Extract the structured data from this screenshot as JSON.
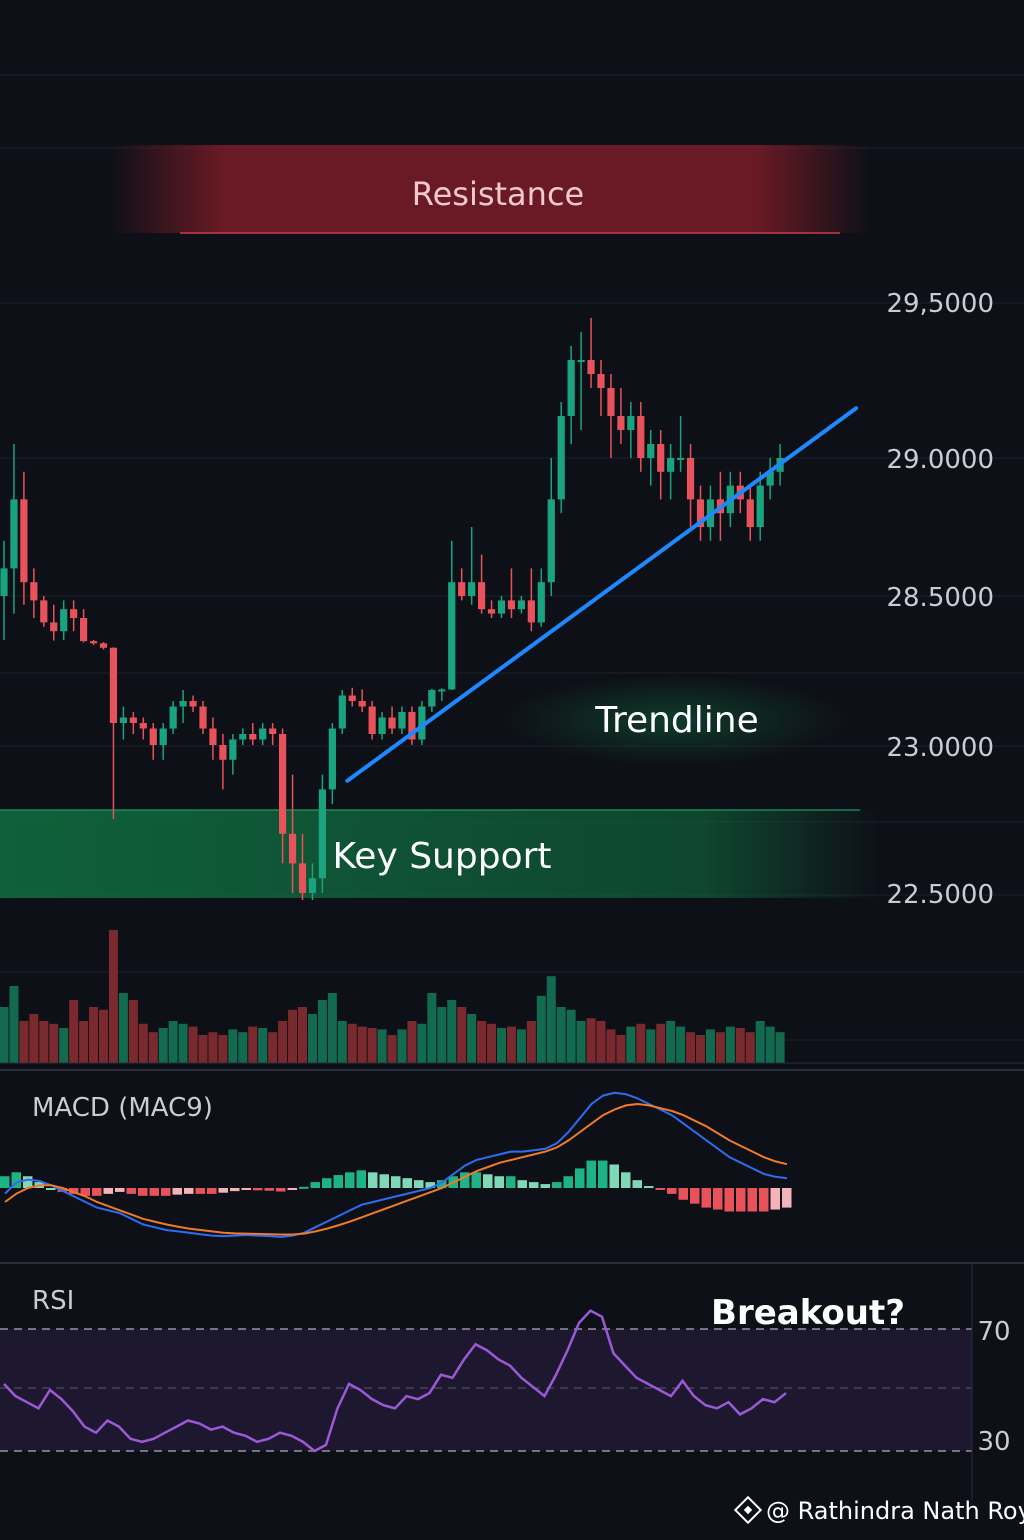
{
  "colors": {
    "background": "#0e1018",
    "bull": "#1aa37f",
    "bear": "#e8525a",
    "trendline": "#1e88ff",
    "macd_line": "#2f6cf0",
    "signal_line": "#f07a2a",
    "rsi_line": "#9b59d6",
    "resistance_band": "#7a1c26",
    "support_band": "#0f6a3e"
  },
  "annotations": {
    "resistance": "Resistance",
    "trendline": "Trendline",
    "support": "Key Support",
    "breakout": "Breakout?"
  },
  "price_axis_labels": [
    "29,5000",
    "29.0000",
    "28.5000",
    "23.0000",
    "22.5000"
  ],
  "panels": {
    "macd_title": "MACD (MAC9)",
    "rsi_title": "RSI",
    "rsi_levels": [
      "70",
      "30"
    ]
  },
  "watermark": "@ Rathindra Nath Roy",
  "chart_data": [
    {
      "type": "candlestick",
      "ylim": [
        22.45,
        29.55
      ],
      "candles": [
        [
          28.5,
          28.7,
          28.0,
          28.6
        ],
        [
          28.6,
          29.05,
          28.3,
          28.85
        ],
        [
          28.85,
          28.95,
          28.4,
          28.55
        ],
        [
          28.55,
          28.6,
          28.25,
          28.45
        ],
        [
          28.45,
          28.5,
          28.15,
          28.2
        ],
        [
          28.2,
          28.4,
          27.95,
          28.1
        ],
        [
          28.1,
          28.45,
          28.0,
          28.35
        ],
        [
          28.35,
          28.45,
          28.1,
          28.25
        ],
        [
          28.25,
          28.35,
          27.8,
          27.9
        ],
        [
          27.9,
          28.0,
          27.55,
          27.7
        ],
        [
          27.7,
          27.8,
          27.15,
          27.3
        ],
        [
          27.3,
          27.35,
          22.75,
          23.2
        ],
        [
          23.2,
          23.35,
          23.05,
          23.25
        ],
        [
          23.25,
          23.3,
          23.1,
          23.2
        ],
        [
          23.2,
          23.25,
          23.05,
          23.15
        ],
        [
          23.15,
          23.2,
          22.95,
          23.0
        ],
        [
          23.0,
          23.2,
          22.95,
          23.15
        ],
        [
          23.15,
          23.4,
          23.1,
          23.35
        ],
        [
          23.35,
          23.5,
          23.2,
          23.4
        ],
        [
          23.4,
          23.45,
          23.3,
          23.35
        ],
        [
          23.35,
          23.4,
          23.1,
          23.15
        ],
        [
          23.15,
          23.25,
          22.95,
          23.0
        ],
        [
          23.0,
          23.1,
          22.85,
          22.95
        ],
        [
          22.95,
          23.1,
          22.9,
          23.05
        ],
        [
          23.05,
          23.15,
          23.0,
          23.1
        ],
        [
          23.1,
          23.2,
          23.0,
          23.05
        ],
        [
          23.05,
          23.2,
          23.0,
          23.15
        ],
        [
          23.15,
          23.2,
          23.0,
          23.1
        ],
        [
          23.1,
          23.15,
          22.6,
          22.7
        ],
        [
          22.7,
          22.9,
          22.5,
          22.6
        ],
        [
          22.6,
          22.7,
          22.45,
          22.5
        ],
        [
          22.5,
          22.6,
          22.45,
          22.55
        ],
        [
          22.55,
          22.9,
          22.5,
          22.85
        ],
        [
          22.85,
          23.2,
          22.8,
          23.15
        ],
        [
          23.15,
          23.5,
          23.1,
          23.45
        ],
        [
          23.45,
          23.7,
          23.35,
          23.4
        ],
        [
          23.4,
          23.55,
          23.3,
          23.35
        ],
        [
          23.35,
          23.4,
          23.05,
          23.1
        ],
        [
          23.1,
          23.3,
          23.05,
          23.25
        ],
        [
          23.25,
          23.35,
          23.1,
          23.15
        ],
        [
          23.15,
          23.35,
          23.1,
          23.3
        ],
        [
          23.3,
          23.35,
          23.0,
          23.05
        ],
        [
          23.05,
          23.4,
          23.0,
          23.35
        ],
        [
          23.35,
          23.6,
          23.3,
          23.5
        ],
        [
          23.5,
          23.65,
          23.4,
          23.55
        ],
        [
          23.55,
          28.7,
          23.5,
          28.55
        ],
        [
          28.55,
          28.6,
          28.45,
          28.5
        ],
        [
          28.5,
          28.75,
          28.4,
          28.55
        ],
        [
          28.55,
          28.65,
          28.3,
          28.35
        ],
        [
          28.35,
          28.45,
          28.25,
          28.3
        ],
        [
          28.3,
          28.5,
          28.25,
          28.45
        ],
        [
          28.45,
          28.6,
          28.25,
          28.35
        ],
        [
          28.35,
          28.5,
          28.3,
          28.45
        ],
        [
          28.45,
          28.6,
          28.1,
          28.2
        ],
        [
          28.2,
          28.6,
          28.15,
          28.55
        ],
        [
          28.55,
          29.0,
          28.5,
          28.85
        ],
        [
          28.85,
          29.2,
          28.8,
          29.15
        ],
        [
          29.15,
          29.4,
          29.05,
          29.35
        ],
        [
          29.35,
          29.45,
          29.1,
          29.35
        ],
        [
          29.35,
          29.5,
          29.25,
          29.3
        ],
        [
          29.3,
          29.35,
          29.15,
          29.25
        ],
        [
          29.25,
          29.3,
          29.0,
          29.15
        ],
        [
          29.15,
          29.25,
          29.05,
          29.1
        ],
        [
          29.1,
          29.2,
          29.0,
          29.15
        ],
        [
          29.15,
          29.2,
          28.95,
          29.0
        ],
        [
          29.0,
          29.1,
          28.9,
          29.05
        ],
        [
          29.05,
          29.1,
          28.85,
          28.95
        ],
        [
          28.95,
          29.05,
          28.85,
          29.0
        ],
        [
          29.0,
          29.15,
          28.95,
          29.0
        ],
        [
          29.0,
          29.05,
          28.75,
          28.85
        ],
        [
          28.85,
          28.9,
          28.7,
          28.75
        ],
        [
          28.75,
          28.9,
          28.7,
          28.85
        ],
        [
          28.85,
          28.95,
          28.7,
          28.8
        ],
        [
          28.8,
          28.95,
          28.75,
          28.9
        ],
        [
          28.9,
          28.95,
          28.8,
          28.85
        ],
        [
          28.85,
          28.9,
          28.7,
          28.75
        ],
        [
          28.75,
          28.95,
          28.7,
          28.9
        ],
        [
          28.9,
          29.0,
          28.85,
          28.95
        ],
        [
          28.95,
          29.05,
          28.9,
          29.0
        ]
      ],
      "trendline": [
        [
          33,
          22.48
        ],
        [
          78,
          29.06
        ]
      ]
    },
    {
      "type": "bar",
      "name": "volume",
      "values": [
        40,
        55,
        30,
        35,
        30,
        28,
        25,
        45,
        30,
        40,
        38,
        95,
        50,
        45,
        28,
        22,
        25,
        30,
        28,
        26,
        20,
        22,
        20,
        24,
        22,
        26,
        25,
        22,
        30,
        38,
        40,
        35,
        45,
        50,
        30,
        28,
        26,
        25,
        24,
        20,
        24,
        30,
        28,
        50,
        40,
        45,
        40,
        35,
        30,
        28,
        25,
        26,
        24,
        30,
        48,
        62,
        40,
        38,
        30,
        32,
        30,
        24,
        20,
        26,
        28,
        24,
        28,
        30,
        26,
        22,
        20,
        24,
        22,
        26,
        25,
        22,
        30,
        26,
        22
      ],
      "ylim": [
        0,
        100
      ]
    },
    {
      "type": "line",
      "name": "MACD",
      "series": [
        {
          "values": [
            -0.2,
            0.2,
            0.3,
            0.25,
            0.1,
            -0.1,
            -0.3,
            -0.5,
            -0.7,
            -0.8,
            -0.9,
            -1.1,
            -1.3,
            -1.4,
            -1.5,
            -1.55,
            -1.6,
            -1.65,
            -1.7,
            -1.72,
            -1.7,
            -1.68,
            -1.7,
            -1.72,
            -1.75,
            -1.7,
            -1.6,
            -1.4,
            -1.2,
            -1.0,
            -0.8,
            -0.6,
            -0.5,
            -0.4,
            -0.3,
            -0.2,
            -0.1,
            0.0,
            0.2,
            0.5,
            0.8,
            1.0,
            1.1,
            1.2,
            1.3,
            1.3,
            1.35,
            1.4,
            1.6,
            2.0,
            2.5,
            3.0,
            3.3,
            3.4,
            3.35,
            3.2,
            3.0,
            2.8,
            2.6,
            2.3,
            2.0,
            1.7,
            1.4,
            1.1,
            0.9,
            0.7,
            0.5,
            0.4,
            0.35
          ]
        },
        {
          "values": [
            -0.5,
            -0.2,
            0.0,
            0.1,
            0.1,
            0.0,
            -0.15,
            -0.3,
            -0.5,
            -0.65,
            -0.8,
            -0.95,
            -1.1,
            -1.2,
            -1.3,
            -1.38,
            -1.45,
            -1.5,
            -1.55,
            -1.6,
            -1.62,
            -1.63,
            -1.64,
            -1.65,
            -1.66,
            -1.66,
            -1.63,
            -1.55,
            -1.45,
            -1.33,
            -1.2,
            -1.05,
            -0.9,
            -0.75,
            -0.6,
            -0.45,
            -0.3,
            -0.15,
            0.0,
            0.2,
            0.4,
            0.6,
            0.75,
            0.9,
            1.0,
            1.1,
            1.2,
            1.3,
            1.45,
            1.7,
            2.0,
            2.3,
            2.6,
            2.8,
            2.95,
            3.0,
            2.95,
            2.85,
            2.75,
            2.6,
            2.4,
            2.2,
            1.95,
            1.7,
            1.5,
            1.3,
            1.1,
            0.95,
            0.85
          ]
        }
      ],
      "histogram": [
        0.3,
        0.4,
        0.3,
        0.15,
        0.0,
        -0.1,
        -0.15,
        -0.2,
        -0.2,
        -0.15,
        -0.1,
        -0.15,
        -0.2,
        -0.2,
        -0.2,
        -0.17,
        -0.15,
        -0.15,
        -0.15,
        -0.12,
        -0.08,
        -0.05,
        -0.06,
        -0.07,
        -0.09,
        -0.04,
        0.03,
        0.15,
        0.25,
        0.33,
        0.4,
        0.45,
        0.4,
        0.35,
        0.3,
        0.25,
        0.2,
        0.15,
        0.2,
        0.3,
        0.4,
        0.4,
        0.35,
        0.3,
        0.3,
        0.2,
        0.15,
        0.1,
        0.15,
        0.3,
        0.5,
        0.7,
        0.7,
        0.6,
        0.4,
        0.2,
        0.05,
        -0.05,
        -0.15,
        -0.3,
        -0.4,
        -0.5,
        -0.55,
        -0.6,
        -0.6,
        -0.6,
        -0.6,
        -0.55,
        -0.5
      ]
    },
    {
      "type": "line",
      "name": "RSI",
      "ylim": [
        20,
        80
      ],
      "y_ticks": [
        70,
        30
      ],
      "values": [
        52,
        48,
        46,
        44,
        50,
        47,
        43,
        38,
        36,
        40,
        38,
        34,
        33,
        34,
        36,
        38,
        40,
        39,
        37,
        38,
        36,
        35,
        33,
        34,
        36,
        35,
        33,
        30,
        32,
        44,
        52,
        50,
        47,
        45,
        44,
        48,
        47,
        49,
        55,
        54,
        60,
        65,
        63,
        60,
        58,
        54,
        51,
        48,
        55,
        63,
        72,
        76,
        74,
        62,
        58,
        54,
        52,
        50,
        48,
        53,
        48,
        45,
        44,
        46,
        42,
        44,
        47,
        46,
        49
      ]
    }
  ]
}
